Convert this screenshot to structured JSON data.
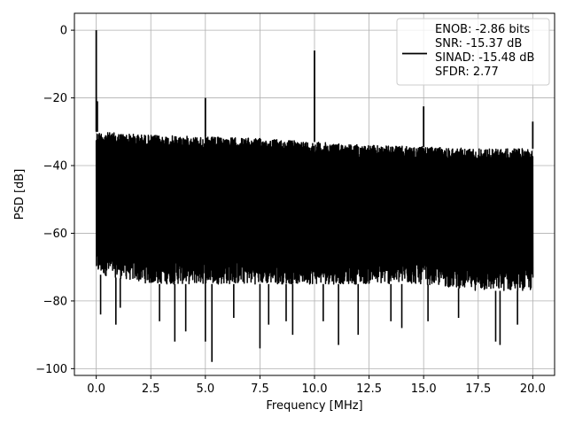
{
  "chart_data": {
    "type": "line",
    "xlabel": "Frequency [MHz]",
    "ylabel": "PSD [dB]",
    "xlim": [
      -1,
      21
    ],
    "ylim": [
      -102,
      5
    ],
    "xticks": [
      0.0,
      2.5,
      5.0,
      7.5,
      10.0,
      12.5,
      15.0,
      17.5,
      20.0
    ],
    "xtick_labels": [
      "0.0",
      "2.5",
      "5.0",
      "7.5",
      "10.0",
      "12.5",
      "15.0",
      "17.5",
      "20.0"
    ],
    "yticks": [
      0,
      -20,
      -40,
      -60,
      -80,
      -100
    ],
    "ytick_labels": [
      "0",
      "−20",
      "−40",
      "−60",
      "−80",
      "−100"
    ],
    "grid": true,
    "legend_position": "top-right",
    "legend_entries": [
      "ENOB: -2.86 bits",
      "SNR: -15.37 dB",
      "SINAD: -15.48 dB",
      "SFDR: 2.77"
    ],
    "series": [
      {
        "color": "#000000",
        "noise_floor": {
          "x_range": [
            0,
            20
          ],
          "upper_envelope": [
            [
              0,
              -30
            ],
            [
              2.5,
              -31
            ],
            [
              5,
              -31.5
            ],
            [
              7.5,
              -32
            ],
            [
              10,
              -33
            ],
            [
              12.5,
              -34
            ],
            [
              15,
              -34.5
            ],
            [
              17.5,
              -35
            ],
            [
              20,
              -35
            ]
          ],
          "lower_envelope": [
            [
              0,
              -72
            ],
            [
              2.5,
              -75
            ],
            [
              5,
              -75
            ],
            [
              7.5,
              -75
            ],
            [
              10,
              -75
            ],
            [
              12.5,
              -75
            ],
            [
              15,
              -75
            ],
            [
              17.5,
              -77
            ],
            [
              20,
              -77
            ]
          ]
        },
        "spikes": [
          {
            "x": 0.0,
            "y": 0
          },
          {
            "x": 0.05,
            "y": -21
          },
          {
            "x": 5.0,
            "y": -20
          },
          {
            "x": 10.0,
            "y": -6
          },
          {
            "x": 15.0,
            "y": -22.5
          },
          {
            "x": 20.0,
            "y": -27
          }
        ],
        "dips": [
          {
            "x": 0.2,
            "y": -84
          },
          {
            "x": 0.9,
            "y": -87
          },
          {
            "x": 1.1,
            "y": -82
          },
          {
            "x": 2.9,
            "y": -86
          },
          {
            "x": 3.6,
            "y": -92
          },
          {
            "x": 4.1,
            "y": -89
          },
          {
            "x": 5.0,
            "y": -92
          },
          {
            "x": 5.3,
            "y": -98
          },
          {
            "x": 6.3,
            "y": -85
          },
          {
            "x": 7.5,
            "y": -94
          },
          {
            "x": 7.9,
            "y": -87
          },
          {
            "x": 8.7,
            "y": -86
          },
          {
            "x": 9.0,
            "y": -90
          },
          {
            "x": 10.4,
            "y": -86
          },
          {
            "x": 11.1,
            "y": -93
          },
          {
            "x": 12.0,
            "y": -90
          },
          {
            "x": 13.5,
            "y": -86
          },
          {
            "x": 14.0,
            "y": -88
          },
          {
            "x": 15.2,
            "y": -86
          },
          {
            "x": 16.6,
            "y": -85
          },
          {
            "x": 18.3,
            "y": -92
          },
          {
            "x": 18.5,
            "y": -93
          },
          {
            "x": 19.3,
            "y": -87
          }
        ]
      }
    ]
  }
}
